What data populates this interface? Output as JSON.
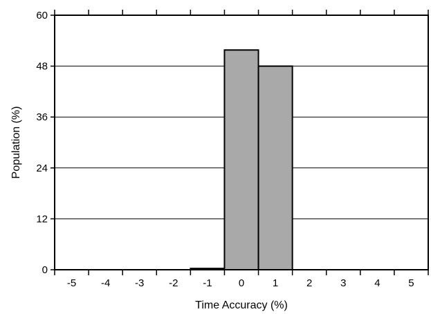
{
  "chart_data": {
    "type": "bar",
    "title": "",
    "xlabel": "Time Accuracy (%)",
    "ylabel": "Population (%)",
    "categories": [
      "-5",
      "-4",
      "-3",
      "-2",
      "-1",
      "0",
      "1",
      "2",
      "3",
      "4",
      "5"
    ],
    "values": [
      0,
      0,
      0,
      0,
      0.3,
      51.8,
      48.0,
      0,
      0,
      0,
      0
    ],
    "ylim": [
      0,
      60
    ],
    "yticks": [
      "0",
      "12",
      "24",
      "36",
      "48",
      "60"
    ],
    "grid": "horizontal",
    "legend": "none",
    "colors": {
      "bar_fill": "#a9a9a9",
      "bar_stroke": "#000000",
      "grid": "#000000",
      "frame": "#000000"
    }
  }
}
